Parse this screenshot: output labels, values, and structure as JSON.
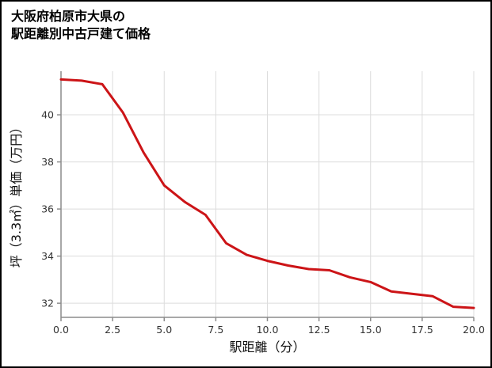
{
  "title": {
    "line1": "大阪府柏原市大県の",
    "line2": "駅距離別中古戸建て価格"
  },
  "chart_data": {
    "type": "line",
    "title": "大阪府柏原市大県の駅距離別中古戸建て価格",
    "xlabel": "駅距離（分）",
    "ylabel": "坪（3.3㎡）単価（万円）",
    "x": [
      0,
      1,
      2,
      3,
      4,
      5,
      6,
      7,
      8,
      9,
      10,
      11,
      12,
      13,
      14,
      15,
      16,
      17,
      18,
      19,
      20
    ],
    "y": [
      41.5,
      41.45,
      41.3,
      40.1,
      38.4,
      37.0,
      36.3,
      35.75,
      34.55,
      34.05,
      33.8,
      33.6,
      33.45,
      33.4,
      33.1,
      32.9,
      32.5,
      32.4,
      32.3,
      31.85,
      31.8
    ],
    "xlim": [
      0,
      20
    ],
    "ylim": [
      31.4,
      41.85
    ],
    "x_ticks": [
      0,
      2.5,
      5,
      7.5,
      10,
      12.5,
      15,
      17.5,
      20
    ],
    "x_tick_labels": [
      "0.0",
      "2.5",
      "5.0",
      "7.5",
      "10.0",
      "12.5",
      "15.0",
      "17.5",
      "20.0"
    ],
    "y_ticks": [
      32,
      34,
      36,
      38,
      40
    ],
    "y_tick_labels": [
      "32",
      "34",
      "36",
      "38",
      "40"
    ],
    "grid": true,
    "legend": false,
    "line_color": "#cc1417",
    "grid_color": "#dcdcdc",
    "axis_color": "#8c8c8c",
    "tick_label_color": "#333333",
    "axis_label_color": "#111111",
    "background_color": "#ffffff"
  }
}
